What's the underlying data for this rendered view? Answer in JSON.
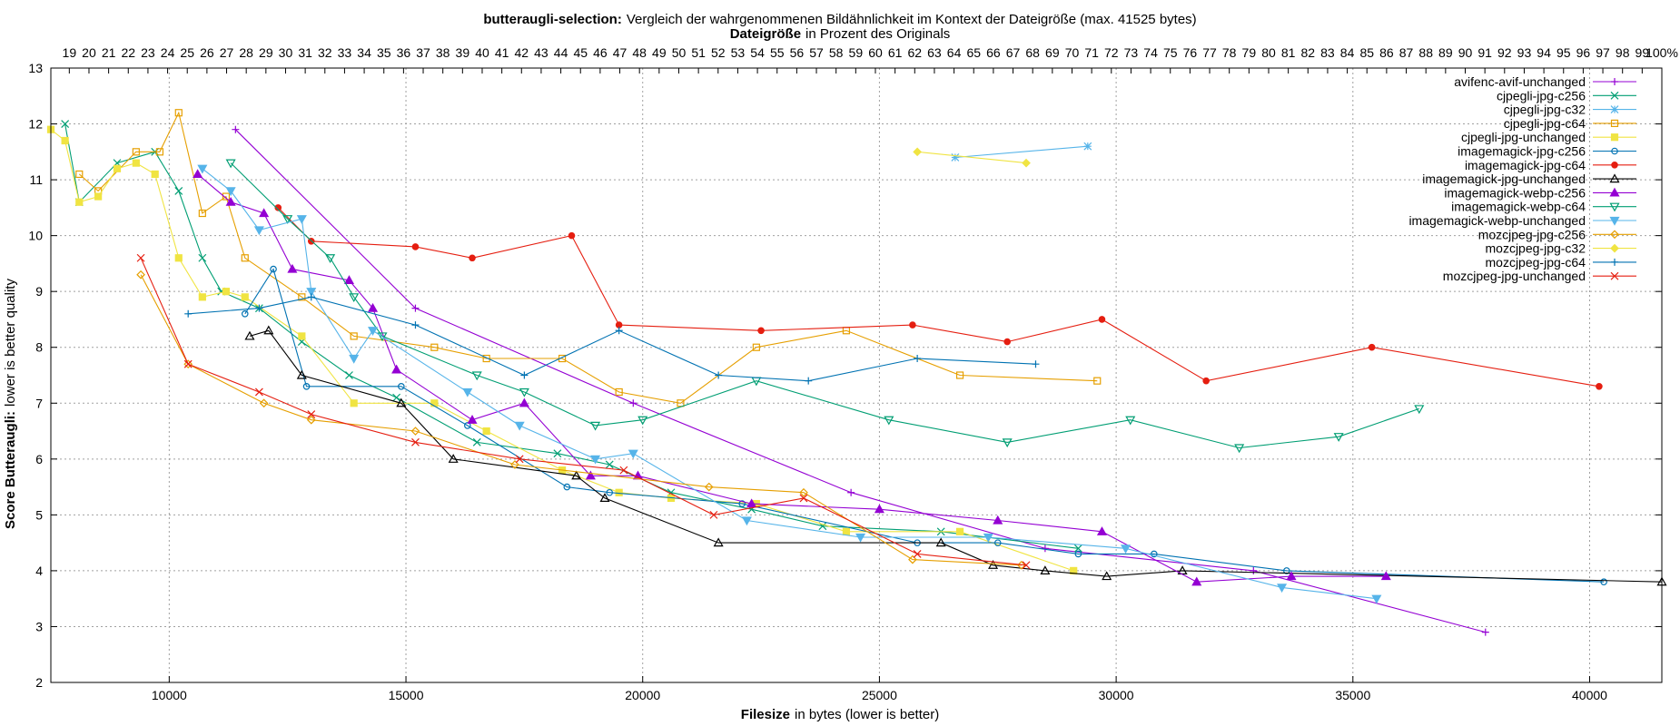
{
  "chart_data": {
    "type": "line",
    "title_bold": "butteraugli-selection:",
    "title_rest": "Vergleich der wahrgenommenen Bildähnlichkeit im Kontext der Dateigröße (max. 41525 bytes)",
    "subtitle_bold": "Dateigröße",
    "subtitle_rest": "in Prozent des Originals",
    "xlabel_bold": "Filesize",
    "xlabel_rest": "in bytes (lower is better)",
    "ylabel_bold": "Score Butteraugli:",
    "ylabel_rest": "lower is better quality",
    "xlim": [
      7500,
      41525
    ],
    "ylim": [
      2,
      13
    ],
    "x_ticks": [
      10000,
      15000,
      20000,
      25000,
      30000,
      35000,
      40000
    ],
    "y_ticks": [
      2,
      3,
      4,
      5,
      6,
      7,
      8,
      9,
      10,
      11,
      12,
      13
    ],
    "x2_tick_start_pct": 18,
    "x2_tick_end_pct": 100,
    "x2_tick_suffix": "%",
    "grid": true,
    "legend_position": "top-right",
    "series": [
      {
        "name": "avifenc-avif-unchanged",
        "color": "#9400d3",
        "marker": "plus",
        "points": [
          [
            11400,
            11.9
          ],
          [
            15200,
            8.7
          ],
          [
            19800,
            7.0
          ],
          [
            24400,
            5.4
          ],
          [
            28500,
            4.4
          ],
          [
            32900,
            4.0
          ],
          [
            37800,
            2.9
          ]
        ]
      },
      {
        "name": "cjpegli-jpg-c256",
        "color": "#009e73",
        "marker": "x",
        "points": [
          [
            7800,
            12.0
          ],
          [
            8100,
            10.6
          ],
          [
            8900,
            11.3
          ],
          [
            9700,
            11.5
          ],
          [
            10200,
            10.8
          ],
          [
            10700,
            9.6
          ],
          [
            11100,
            9.0
          ],
          [
            11900,
            8.7
          ],
          [
            12800,
            8.1
          ],
          [
            13800,
            7.5
          ],
          [
            14800,
            7.1
          ],
          [
            16500,
            6.3
          ],
          [
            18200,
            6.1
          ],
          [
            19300,
            5.9
          ],
          [
            20600,
            5.4
          ],
          [
            22300,
            5.1
          ],
          [
            23800,
            4.8
          ],
          [
            26300,
            4.7
          ],
          [
            29200,
            4.4
          ]
        ]
      },
      {
        "name": "cjpegli-jpg-c32",
        "color": "#56b4e9",
        "marker": "star",
        "points": [
          [
            26600,
            11.4
          ],
          [
            29400,
            11.6
          ]
        ]
      },
      {
        "name": "cjpegli-jpg-c64",
        "color": "#e69f00",
        "marker": "square",
        "points": [
          [
            8100,
            11.1
          ],
          [
            8500,
            10.8
          ],
          [
            9300,
            11.5
          ],
          [
            9800,
            11.5
          ],
          [
            10200,
            12.2
          ],
          [
            10700,
            10.4
          ],
          [
            11200,
            10.7
          ],
          [
            11600,
            9.6
          ],
          [
            12800,
            8.9
          ],
          [
            13900,
            8.2
          ],
          [
            15600,
            8.0
          ],
          [
            16700,
            7.8
          ],
          [
            18300,
            7.8
          ],
          [
            19500,
            7.2
          ],
          [
            20800,
            7.0
          ],
          [
            22400,
            8.0
          ],
          [
            24300,
            8.3
          ],
          [
            26700,
            7.5
          ],
          [
            29600,
            7.4
          ]
        ]
      },
      {
        "name": "cjpegli-jpg-unchanged",
        "color": "#f0e442",
        "marker": "square-filled",
        "points": [
          [
            7500,
            11.9
          ],
          [
            7800,
            11.7
          ],
          [
            8100,
            10.6
          ],
          [
            8500,
            10.7
          ],
          [
            8900,
            11.2
          ],
          [
            9300,
            11.3
          ],
          [
            9700,
            11.1
          ],
          [
            10200,
            9.6
          ],
          [
            10700,
            8.9
          ],
          [
            11200,
            9.0
          ],
          [
            11600,
            8.9
          ],
          [
            12800,
            8.2
          ],
          [
            13900,
            7.0
          ],
          [
            15600,
            7.0
          ],
          [
            16700,
            6.5
          ],
          [
            18300,
            5.8
          ],
          [
            19500,
            5.4
          ],
          [
            20600,
            5.3
          ],
          [
            22400,
            5.2
          ],
          [
            24300,
            4.7
          ],
          [
            26700,
            4.7
          ],
          [
            29100,
            4.0
          ]
        ]
      },
      {
        "name": "imagemagick-jpg-c256",
        "color": "#0072b2",
        "marker": "circle",
        "points": [
          [
            11600,
            8.6
          ],
          [
            12200,
            9.4
          ],
          [
            12900,
            7.3
          ],
          [
            14900,
            7.3
          ],
          [
            16300,
            6.6
          ],
          [
            18400,
            5.5
          ],
          [
            19300,
            5.4
          ],
          [
            22100,
            5.2
          ],
          [
            25800,
            4.5
          ],
          [
            27500,
            4.5
          ],
          [
            29200,
            4.3
          ],
          [
            30800,
            4.3
          ],
          [
            33600,
            4.0
          ],
          [
            40300,
            3.8
          ]
        ]
      },
      {
        "name": "imagemagick-jpg-c64",
        "color": "#e51e10",
        "marker": "circle-filled",
        "points": [
          [
            12300,
            10.5
          ],
          [
            13000,
            9.9
          ],
          [
            15200,
            9.8
          ],
          [
            16400,
            9.6
          ],
          [
            18500,
            10.0
          ],
          [
            19500,
            8.4
          ],
          [
            22500,
            8.3
          ],
          [
            25700,
            8.4
          ],
          [
            27700,
            8.1
          ],
          [
            29700,
            8.5
          ],
          [
            31900,
            7.4
          ],
          [
            35400,
            8.0
          ],
          [
            40200,
            7.3
          ]
        ]
      },
      {
        "name": "imagemagick-jpg-unchanged",
        "color": "#000000",
        "marker": "triangle",
        "points": [
          [
            11700,
            8.2
          ],
          [
            12100,
            8.3
          ],
          [
            12800,
            7.5
          ],
          [
            14900,
            7.0
          ],
          [
            16000,
            6.0
          ],
          [
            18600,
            5.7
          ],
          [
            19200,
            5.3
          ],
          [
            21600,
            4.5
          ],
          [
            26300,
            4.5
          ],
          [
            27400,
            4.1
          ],
          [
            28500,
            4.0
          ],
          [
            29800,
            3.9
          ],
          [
            31400,
            4.0
          ],
          [
            41525,
            3.8
          ]
        ]
      },
      {
        "name": "imagemagick-webp-c256",
        "color": "#9400d3",
        "marker": "triangle-filled",
        "points": [
          [
            10600,
            11.1
          ],
          [
            11300,
            10.6
          ],
          [
            12000,
            10.4
          ],
          [
            12600,
            9.4
          ],
          [
            13800,
            9.2
          ],
          [
            14300,
            8.7
          ],
          [
            14800,
            7.6
          ],
          [
            16400,
            6.7
          ],
          [
            17500,
            7.0
          ],
          [
            18900,
            5.7
          ],
          [
            19900,
            5.7
          ],
          [
            22300,
            5.2
          ],
          [
            25000,
            5.1
          ],
          [
            27500,
            4.9
          ],
          [
            29700,
            4.7
          ],
          [
            31700,
            3.8
          ],
          [
            33700,
            3.9
          ],
          [
            35700,
            3.9
          ]
        ]
      },
      {
        "name": "imagemagick-webp-c64",
        "color": "#009e73",
        "marker": "triangle-down",
        "points": [
          [
            11300,
            11.3
          ],
          [
            12500,
            10.3
          ],
          [
            13400,
            9.6
          ],
          [
            13900,
            8.9
          ],
          [
            14500,
            8.2
          ],
          [
            16500,
            7.5
          ],
          [
            17500,
            7.2
          ],
          [
            19000,
            6.6
          ],
          [
            20000,
            6.7
          ],
          [
            22400,
            7.4
          ],
          [
            25200,
            6.7
          ],
          [
            27700,
            6.3
          ],
          [
            30300,
            6.7
          ],
          [
            32600,
            6.2
          ],
          [
            34700,
            6.4
          ],
          [
            36400,
            6.9
          ]
        ]
      },
      {
        "name": "imagemagick-webp-unchanged",
        "color": "#56b4e9",
        "marker": "triangle-down-filled",
        "points": [
          [
            10700,
            11.2
          ],
          [
            11300,
            10.8
          ],
          [
            11900,
            10.1
          ],
          [
            12800,
            10.3
          ],
          [
            13000,
            9.0
          ],
          [
            13900,
            7.8
          ],
          [
            14300,
            8.3
          ],
          [
            16300,
            7.2
          ],
          [
            17400,
            6.6
          ],
          [
            19000,
            6.0
          ],
          [
            19800,
            6.1
          ],
          [
            22200,
            4.9
          ],
          [
            24600,
            4.6
          ],
          [
            27300,
            4.6
          ],
          [
            30200,
            4.4
          ],
          [
            33500,
            3.7
          ],
          [
            35500,
            3.5
          ]
        ]
      },
      {
        "name": "mozcjpeg-jpg-c256",
        "color": "#e69f00",
        "marker": "diamond",
        "points": [
          [
            9400,
            9.3
          ],
          [
            10400,
            7.7
          ],
          [
            12000,
            7.0
          ],
          [
            13000,
            6.7
          ],
          [
            15200,
            6.5
          ],
          [
            17300,
            5.9
          ],
          [
            21400,
            5.5
          ],
          [
            23400,
            5.4
          ],
          [
            25700,
            4.2
          ],
          [
            28000,
            4.1
          ]
        ]
      },
      {
        "name": "mozcjpeg-jpg-c32",
        "color": "#f0e442",
        "marker": "diamond-filled",
        "points": [
          [
            25800,
            11.5
          ],
          [
            28100,
            11.3
          ]
        ]
      },
      {
        "name": "mozcjpeg-jpg-c64",
        "color": "#0072b2",
        "marker": "plus",
        "points": [
          [
            10400,
            8.6
          ],
          [
            11900,
            8.7
          ],
          [
            13000,
            8.9
          ],
          [
            15200,
            8.4
          ],
          [
            17500,
            7.5
          ],
          [
            19500,
            8.3
          ],
          [
            21600,
            7.5
          ],
          [
            23500,
            7.4
          ],
          [
            25800,
            7.8
          ],
          [
            28300,
            7.7
          ]
        ]
      },
      {
        "name": "mozcjpeg-jpg-unchanged",
        "color": "#e51e10",
        "marker": "x",
        "points": [
          [
            9400,
            9.6
          ],
          [
            10400,
            7.7
          ],
          [
            11900,
            7.2
          ],
          [
            13000,
            6.8
          ],
          [
            15200,
            6.3
          ],
          [
            17400,
            6.0
          ],
          [
            19600,
            5.8
          ],
          [
            21500,
            5.0
          ],
          [
            23400,
            5.3
          ],
          [
            25800,
            4.3
          ],
          [
            28100,
            4.1
          ]
        ]
      }
    ]
  }
}
